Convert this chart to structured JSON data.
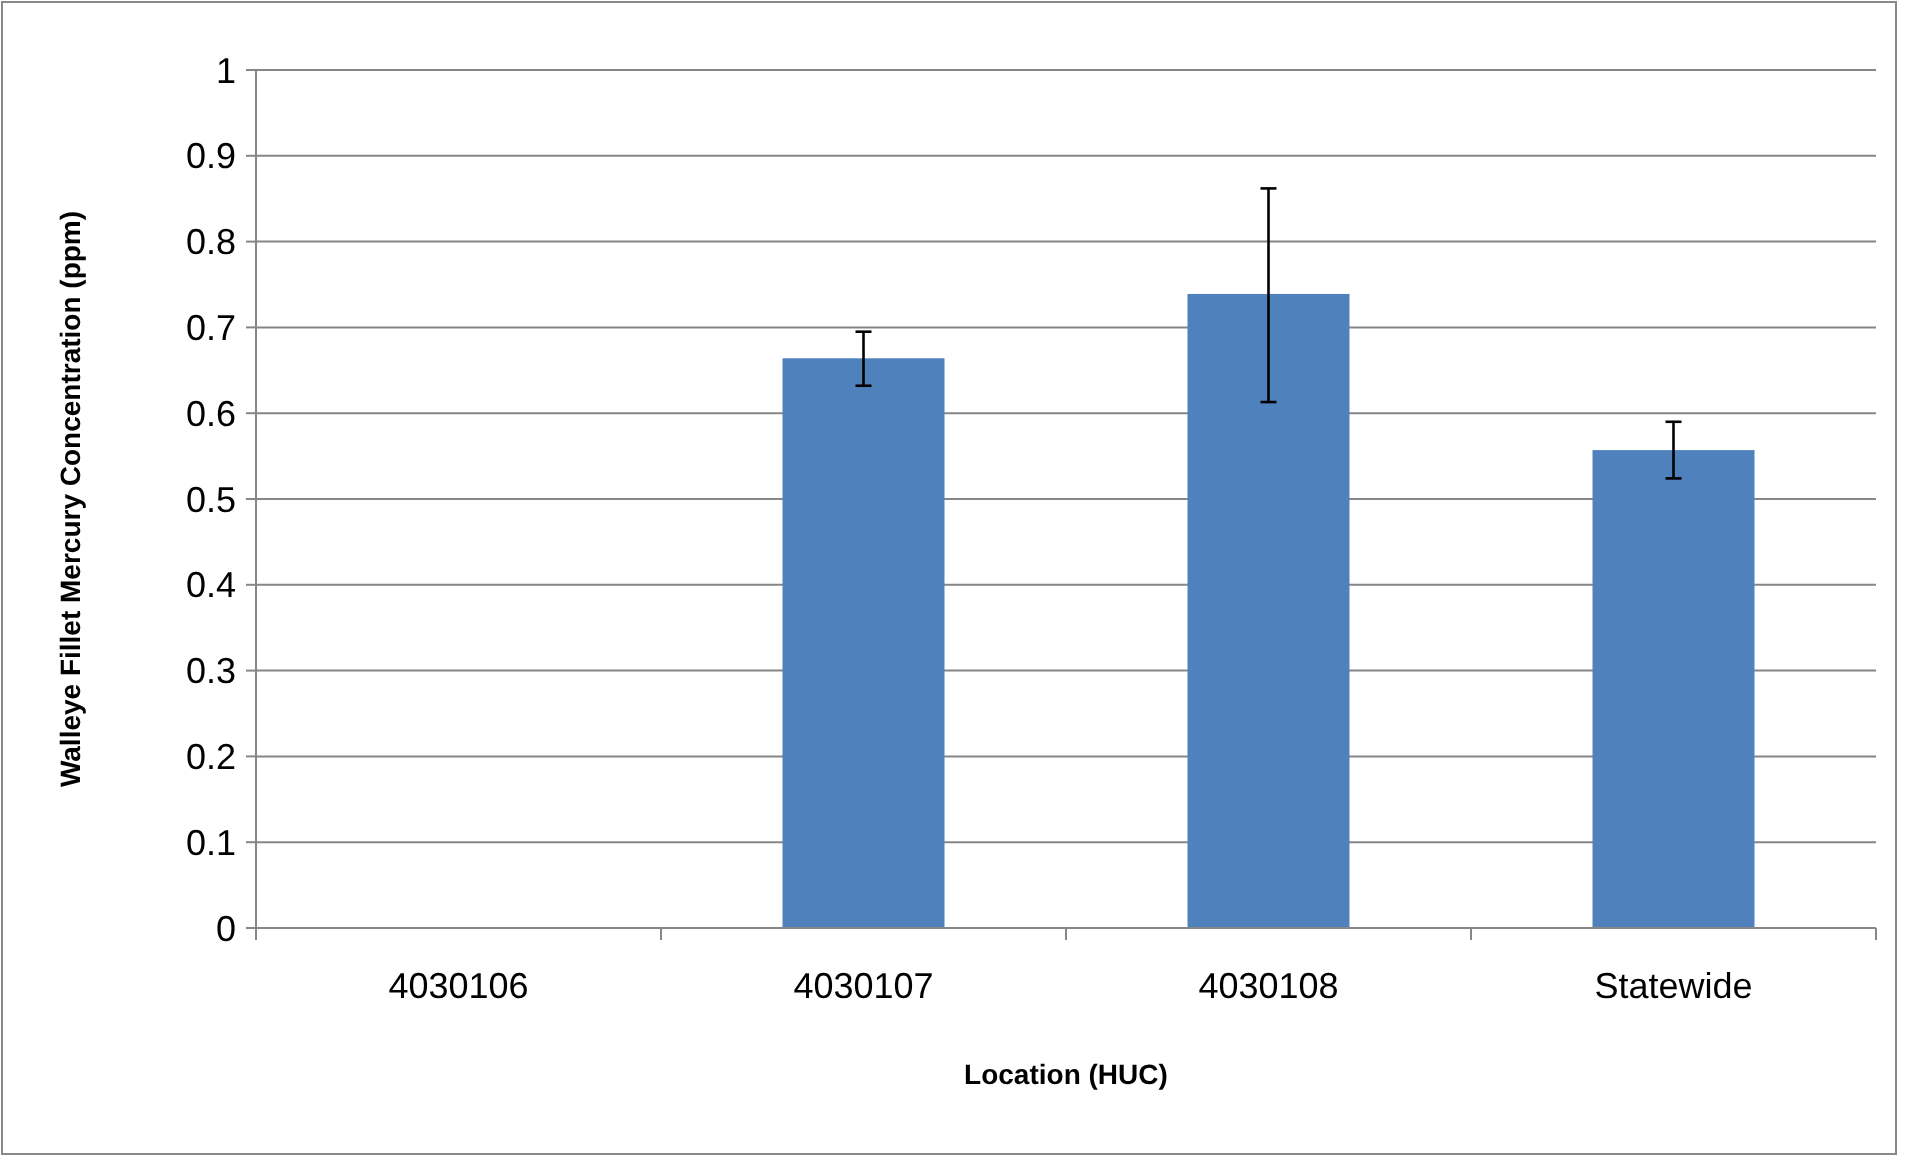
{
  "chart_data": {
    "type": "bar",
    "xlabel": "Location (HUC)",
    "ylabel": "Walleye Fillet Mercury Concentration (ppm)",
    "categories": [
      "4030106",
      "4030107",
      "4030108",
      "Statewide"
    ],
    "values": [
      null,
      0.664,
      0.739,
      0.557
    ],
    "errors": [
      null,
      [
        0.632,
        0.695
      ],
      [
        0.613,
        0.862
      ],
      [
        0.524,
        0.59
      ]
    ],
    "color": "#4f81bd",
    "ylim": [
      0,
      1
    ],
    "yticks": [
      0,
      0.1,
      0.2,
      0.3,
      0.4,
      0.5,
      0.6,
      0.7,
      0.8,
      0.9,
      1
    ],
    "grid": "y"
  }
}
